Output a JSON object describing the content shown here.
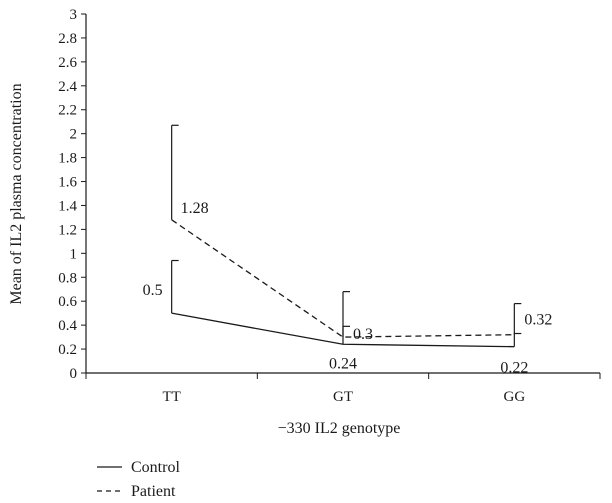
{
  "chart_data": {
    "type": "line",
    "categories": [
      "TT",
      "GT",
      "GG"
    ],
    "series": [
      {
        "name": "Control",
        "style": "solid",
        "values": [
          0.5,
          0.24,
          0.22
        ],
        "error_upper": [
          0.94,
          0.68,
          0.58
        ],
        "labels": [
          "0.5",
          "0.24",
          "0.22"
        ]
      },
      {
        "name": "Patient",
        "style": "dashed",
        "values": [
          1.28,
          0.3,
          0.32
        ],
        "error_upper": [
          2.07,
          0.39,
          0.33
        ],
        "labels": [
          "1.28",
          "0.3",
          "0.32"
        ]
      }
    ],
    "xlabel": "−330 IL2 genotype",
    "ylabel": "Mean of IL2 plasma concentration",
    "ylim": [
      0,
      3
    ],
    "yticks": [
      "0",
      "0.2",
      "0.4",
      "0.6",
      "0.8",
      "1",
      "1.2",
      "1.4",
      "1.6",
      "1.8",
      "2",
      "2.2",
      "2.4",
      "2.6",
      "2.8",
      "3"
    ],
    "ytick_values": [
      0,
      0.2,
      0.4,
      0.6,
      0.8,
      1,
      1.2,
      1.4,
      1.6,
      1.8,
      2,
      2.2,
      2.4,
      2.6,
      2.8,
      3
    ],
    "grid": false,
    "legend": "bottom-left",
    "colors": {
      "line": "#1a1a1a",
      "axis": "#1a1a1a"
    }
  }
}
